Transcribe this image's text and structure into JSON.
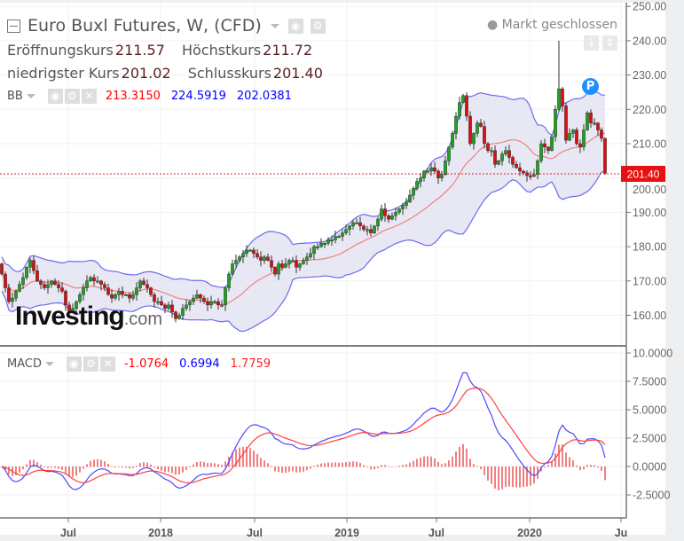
{
  "header": {
    "title": "Euro Buxl Futures, W, (CFD)",
    "market_status": "Markt geschlossen",
    "ohlc": [
      {
        "label": "Eröffnungskurs",
        "value": "211.57"
      },
      {
        "label": "Höchstkurs",
        "value": "211.72"
      },
      {
        "label": "niedrigster Kurs",
        "value": "201.02"
      },
      {
        "label": "Schlusskurs",
        "value": "201.40"
      }
    ]
  },
  "bb": {
    "label": "BB",
    "values": [
      "213.3150",
      "224.5919",
      "202.0381"
    ]
  },
  "macd": {
    "label": "MACD",
    "values": [
      "-1.0764",
      "0.6994",
      "1.7759"
    ]
  },
  "current_price_label": "201.40",
  "marker_label": "P",
  "logo": {
    "main": "Investing",
    "suffix": ".com"
  },
  "colors": {
    "up": "#22a022",
    "down": "#d81010",
    "band": "#6b6bf0",
    "band_fill": "#e4e4f2",
    "sma": "#ef8080",
    "macd_line": "#4a4aff",
    "signal_line": "#ff4040",
    "hist": "#f06060",
    "price_line": "#e02020"
  },
  "chart_data": {
    "type": "candlestick",
    "title": "Euro Buxl Futures, W, (CFD)",
    "interval": "weekly",
    "first_open": 175,
    "closes": [
      172,
      168,
      164,
      165,
      167,
      169,
      171,
      174,
      176,
      173,
      170,
      169,
      168,
      169,
      170,
      169,
      168,
      167,
      163,
      161,
      162,
      164,
      166,
      168,
      170,
      171,
      170,
      170,
      169,
      168,
      166,
      165,
      166,
      167,
      166,
      166,
      165,
      166,
      168,
      170,
      169,
      168,
      166,
      164,
      164,
      163,
      162,
      163,
      161,
      159,
      160,
      162,
      163,
      164,
      165,
      166,
      165,
      164,
      163,
      164,
      164,
      163,
      163,
      168,
      172,
      175,
      176,
      177,
      178,
      179,
      179,
      178,
      177,
      176,
      177,
      176,
      174,
      172,
      175,
      174,
      175,
      176,
      176,
      174,
      175,
      176,
      177,
      178,
      180,
      180,
      181,
      181,
      182,
      182,
      183,
      183,
      184,
      185,
      186,
      187,
      187,
      186,
      185,
      185,
      184,
      186,
      188,
      191,
      189,
      188,
      189,
      190,
      191,
      192,
      193,
      195,
      197,
      199,
      200,
      202,
      202,
      203,
      202,
      200,
      201,
      205,
      209,
      213,
      218,
      222,
      224,
      218,
      210,
      213,
      216,
      215,
      210,
      208,
      208,
      204,
      205,
      207,
      208,
      206,
      204,
      203,
      202,
      201.5,
      200.7,
      200.5,
      201,
      205,
      210,
      209,
      208,
      212,
      220,
      226,
      221,
      211,
      213,
      214,
      210,
      209,
      214,
      219,
      216,
      216,
      214,
      211.57,
      201.4
    ],
    "notable_high": {
      "index": 157,
      "value": 240
    },
    "last_bar": {
      "open": 211.57,
      "high": 211.72,
      "low": 201.02,
      "close": 201.4
    },
    "indicators": {
      "bollinger": {
        "period": 20,
        "stddev": 2,
        "last": {
          "middle": 213.315,
          "upper": 224.5919,
          "lower": 202.0381
        }
      },
      "macd": {
        "fast": 12,
        "slow": 26,
        "signal": 9,
        "last": {
          "histogram": -1.0764,
          "macd": 0.6994,
          "signal": 1.7759
        }
      }
    },
    "price_axis": {
      "range": [
        155,
        250
      ],
      "ticks": [
        "250.00",
        "240.00",
        "230.00",
        "220.00",
        "210.00",
        "200.00",
        "190.00",
        "180.00",
        "170.00",
        "160.00"
      ]
    },
    "macd_axis": {
      "range": [
        -3.5,
        10.5
      ],
      "ticks": [
        "10.0000",
        "7.5000",
        "5.0000",
        "2.5000",
        "0.0000",
        "-2.5000"
      ]
    },
    "time_axis": {
      "ticks": [
        "Jul",
        "2018",
        "Jul",
        "2019",
        "Jul",
        "2020",
        "Ju"
      ]
    }
  }
}
